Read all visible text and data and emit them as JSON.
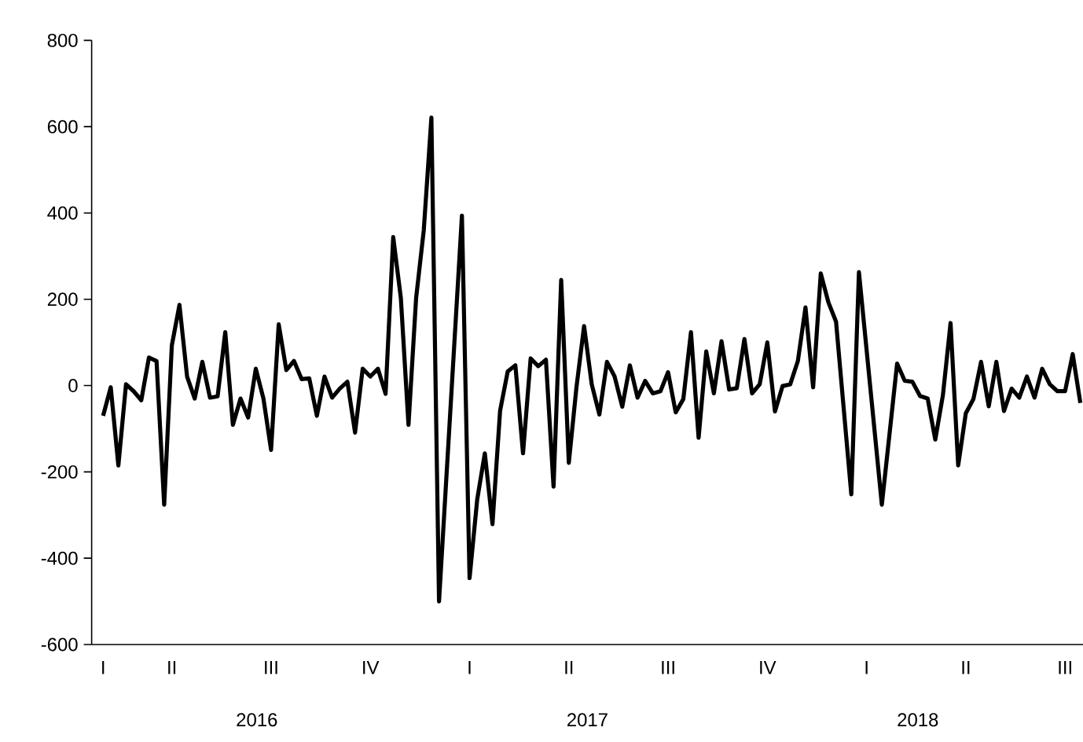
{
  "chart_data": {
    "type": "line",
    "categories": [
      "I",
      null,
      null,
      null,
      null,
      null,
      null,
      null,
      null,
      "II",
      null,
      null,
      null,
      null,
      null,
      null,
      null,
      null,
      null,
      null,
      null,
      null,
      "III",
      null,
      null,
      null,
      null,
      null,
      null,
      null,
      null,
      null,
      null,
      null,
      null,
      "IV",
      null,
      null,
      null,
      null,
      null,
      null,
      null,
      null,
      null,
      null,
      null,
      null,
      "I",
      null,
      null,
      null,
      null,
      null,
      null,
      null,
      null,
      null,
      null,
      null,
      null,
      "II",
      null,
      null,
      null,
      null,
      null,
      null,
      null,
      null,
      null,
      null,
      null,
      null,
      "III",
      null,
      null,
      null,
      null,
      null,
      null,
      null,
      null,
      null,
      null,
      null,
      null,
      "IV",
      null,
      null,
      null,
      null,
      null,
      null,
      null,
      null,
      null,
      null,
      null,
      null,
      "I",
      null,
      null,
      null,
      null,
      null,
      null,
      null,
      null,
      null,
      null,
      null,
      null,
      "II",
      null,
      null,
      null,
      null,
      null,
      null,
      null,
      null,
      null,
      null,
      null,
      null,
      "III",
      null,
      null
    ],
    "series": [
      {
        "color": "#000000",
        "values": [
          -70,
          -4,
          -185,
          3,
          -13,
          -34,
          65,
          57,
          -276,
          93,
          187,
          21,
          -30,
          55,
          -28,
          -25,
          124,
          -91,
          -30,
          -74,
          39,
          -30,
          -149,
          142,
          36,
          57,
          15,
          17,
          -70,
          21,
          -28,
          -7,
          9,
          -109,
          39,
          21,
          39,
          -19,
          344,
          203,
          -91,
          203,
          360,
          621,
          -500,
          -202,
          96,
          394,
          -446,
          -264,
          -157,
          -321,
          -58,
          33,
          47,
          -157,
          63,
          45,
          60,
          -234,
          245,
          -179,
          -4,
          138,
          3,
          -67,
          55,
          21,
          -49,
          47,
          -28,
          11,
          -18,
          -13,
          31,
          -62,
          -31,
          124,
          -121,
          79,
          -18,
          103,
          -9,
          -6,
          108,
          -18,
          3,
          100,
          -60,
          -1,
          3,
          57,
          181,
          -4,
          260,
          193,
          148,
          -52,
          -252,
          263,
          83,
          -96,
          -276,
          -113,
          51,
          11,
          9,
          -24,
          -30,
          -125,
          -22,
          145,
          -185,
          -64,
          -31,
          55,
          -48,
          55,
          -59,
          -7,
          -28,
          21,
          -28,
          39,
          3,
          -13,
          -13,
          73,
          -40
        ]
      }
    ],
    "annotations": [
      "2016",
      "2017",
      "2018"
    ],
    "ylim": [
      -600,
      800
    ],
    "yticks": [
      -600,
      -400,
      -200,
      0,
      200,
      400,
      600,
      800
    ],
    "marker": "none",
    "line_style": "solid"
  }
}
